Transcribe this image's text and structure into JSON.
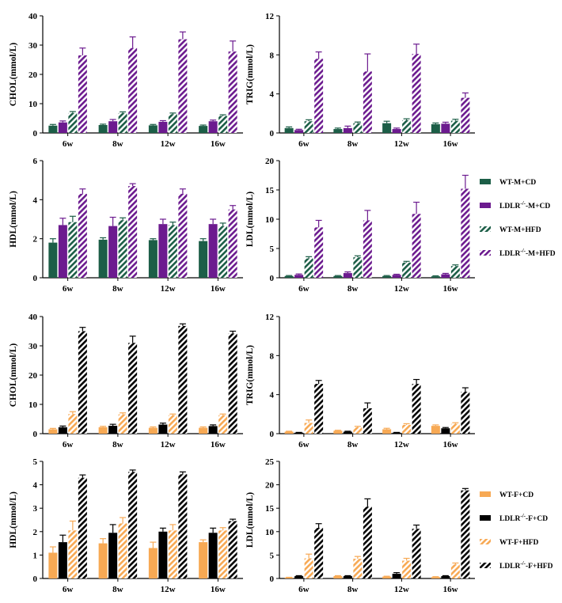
{
  "colors": {
    "wt_m": "#1c5e47",
    "ldlr_m": "#6c1b8f",
    "wt_f": "#f7a954",
    "ldlr_f": "#000000"
  },
  "legend_male": [
    {
      "label": "WT-M+CD",
      "sup": "",
      "rest": "",
      "pattern": "solid",
      "color_key": "wt_m"
    },
    {
      "label": "LDLR",
      "sup": "-/-",
      "rest": "-M+CD",
      "pattern": "solid",
      "color_key": "ldlr_m"
    },
    {
      "label": "WT-M+HFD",
      "sup": "",
      "rest": "",
      "pattern": "hatch",
      "color_key": "wt_m"
    },
    {
      "label": "LDLR",
      "sup": "-/-",
      "rest": "-M+HFD",
      "pattern": "hatch",
      "color_key": "ldlr_m"
    }
  ],
  "legend_female": [
    {
      "label": "WT-F+CD",
      "sup": "",
      "rest": "",
      "pattern": "solid",
      "color_key": "wt_f"
    },
    {
      "label": "LDLR",
      "sup": "-/-",
      "rest": "-F+CD",
      "pattern": "solid",
      "color_key": "ldlr_f"
    },
    {
      "label": "WT-F+HFD",
      "sup": "",
      "rest": "",
      "pattern": "hatch",
      "color_key": "wt_f"
    },
    {
      "label": "LDLR",
      "sup": "-/-",
      "rest": "-F+HFD",
      "pattern": "hatch",
      "color_key": "ldlr_f"
    }
  ],
  "chart_data": [
    {
      "type": "bar",
      "id": "male-chol",
      "group": "male",
      "ylabel": "CHOL(mmol/L)",
      "ylim": [
        0,
        40
      ],
      "yticks": [
        0,
        10,
        20,
        30,
        40
      ],
      "categories": [
        "6w",
        "8w",
        "12w",
        "16w"
      ],
      "series": [
        {
          "color_key": "wt_m",
          "pattern": "solid",
          "values": [
            2.5,
            2.7,
            2.6,
            2.4
          ],
          "err": [
            0.4,
            0.3,
            0.3,
            0.3
          ]
        },
        {
          "color_key": "ldlr_m",
          "pattern": "solid",
          "values": [
            3.6,
            4.0,
            3.8,
            4.0
          ],
          "err": [
            0.5,
            0.6,
            0.4,
            0.4
          ]
        },
        {
          "color_key": "wt_m",
          "pattern": "hatch",
          "values": [
            6.8,
            6.8,
            6.4,
            5.8
          ],
          "err": [
            0.5,
            0.4,
            0.4,
            0.4
          ]
        },
        {
          "color_key": "ldlr_m",
          "pattern": "hatch",
          "values": [
            26.5,
            29.0,
            32.0,
            27.8
          ],
          "err": [
            2.5,
            3.8,
            2.5,
            3.6
          ]
        }
      ]
    },
    {
      "type": "bar",
      "id": "male-trig",
      "group": "male",
      "ylabel": "TRIG(mmol/L)",
      "ylim": [
        0,
        12
      ],
      "yticks": [
        0,
        4,
        8,
        12
      ],
      "categories": [
        "6w",
        "8w",
        "12w",
        "16w"
      ],
      "series": [
        {
          "color_key": "wt_m",
          "pattern": "solid",
          "values": [
            0.5,
            0.4,
            1.0,
            0.9
          ],
          "err": [
            0.12,
            0.1,
            0.2,
            0.12
          ]
        },
        {
          "color_key": "ldlr_m",
          "pattern": "solid",
          "values": [
            0.3,
            0.5,
            0.4,
            0.95
          ],
          "err": [
            0.08,
            0.2,
            0.1,
            0.15
          ]
        },
        {
          "color_key": "wt_m",
          "pattern": "hatch",
          "values": [
            1.2,
            1.0,
            1.3,
            1.25
          ],
          "err": [
            0.15,
            0.12,
            0.15,
            0.15
          ]
        },
        {
          "color_key": "ldlr_m",
          "pattern": "hatch",
          "values": [
            7.6,
            6.3,
            8.1,
            3.6
          ],
          "err": [
            0.7,
            1.8,
            1.0,
            0.5
          ]
        }
      ]
    },
    {
      "type": "bar",
      "id": "male-hdl",
      "group": "male",
      "ylabel": "HDL(mmol/L)",
      "ylim": [
        0,
        6
      ],
      "yticks": [
        0,
        2,
        4,
        6
      ],
      "categories": [
        "6w",
        "8w",
        "12w",
        "16w"
      ],
      "series": [
        {
          "color_key": "wt_m",
          "pattern": "solid",
          "values": [
            1.8,
            1.95,
            1.93,
            1.88
          ],
          "err": [
            0.2,
            0.1,
            0.07,
            0.12
          ]
        },
        {
          "color_key": "ldlr_m",
          "pattern": "solid",
          "values": [
            2.7,
            2.65,
            2.75,
            2.75
          ],
          "err": [
            0.35,
            0.45,
            0.25,
            0.25
          ]
        },
        {
          "color_key": "wt_m",
          "pattern": "hatch",
          "values": [
            2.85,
            2.95,
            2.7,
            2.65
          ],
          "err": [
            0.3,
            0.12,
            0.15,
            0.15
          ]
        },
        {
          "color_key": "ldlr_m",
          "pattern": "hatch",
          "values": [
            4.3,
            4.7,
            4.3,
            3.5
          ],
          "err": [
            0.25,
            0.12,
            0.25,
            0.2
          ]
        }
      ]
    },
    {
      "type": "bar",
      "id": "male-ldl",
      "group": "male",
      "ylabel": "LDL(mmol/L)",
      "ylim": [
        0,
        20
      ],
      "yticks": [
        0,
        5,
        10,
        15,
        20
      ],
      "categories": [
        "6w",
        "8w",
        "12w",
        "16w"
      ],
      "series": [
        {
          "color_key": "wt_m",
          "pattern": "solid",
          "values": [
            0.3,
            0.3,
            0.3,
            0.25
          ],
          "err": [
            0.08,
            0.08,
            0.08,
            0.08
          ]
        },
        {
          "color_key": "ldlr_m",
          "pattern": "solid",
          "values": [
            0.5,
            0.8,
            0.5,
            0.6
          ],
          "err": [
            0.15,
            0.2,
            0.1,
            0.15
          ]
        },
        {
          "color_key": "wt_m",
          "pattern": "hatch",
          "values": [
            3.3,
            3.5,
            2.6,
            2.0
          ],
          "err": [
            0.3,
            0.25,
            0.2,
            0.2
          ]
        },
        {
          "color_key": "ldlr_m",
          "pattern": "hatch",
          "values": [
            8.6,
            9.8,
            10.9,
            15.2
          ],
          "err": [
            1.2,
            1.7,
            2.0,
            2.3
          ]
        }
      ]
    },
    {
      "type": "bar",
      "id": "female-chol",
      "group": "female",
      "ylabel": "CHOL(mmol/L)",
      "ylim": [
        0,
        40
      ],
      "yticks": [
        0,
        10,
        20,
        30,
        40
      ],
      "categories": [
        "6w",
        "8w",
        "12w",
        "16w"
      ],
      "series": [
        {
          "color_key": "wt_f",
          "pattern": "solid",
          "values": [
            1.5,
            2.2,
            2.0,
            2.0
          ],
          "err": [
            0.3,
            0.3,
            0.3,
            0.3
          ]
        },
        {
          "color_key": "ldlr_f",
          "pattern": "solid",
          "values": [
            2.2,
            2.7,
            3.1,
            2.6
          ],
          "err": [
            0.4,
            0.5,
            0.5,
            0.4
          ]
        },
        {
          "color_key": "wt_f",
          "pattern": "hatch",
          "values": [
            6.7,
            6.6,
            6.3,
            6.3
          ],
          "err": [
            0.8,
            0.5,
            0.4,
            0.4
          ]
        },
        {
          "color_key": "ldlr_f",
          "pattern": "hatch",
          "values": [
            35.0,
            31.0,
            36.8,
            34.2
          ],
          "err": [
            1.3,
            2.3,
            0.7,
            0.8
          ]
        }
      ]
    },
    {
      "type": "bar",
      "id": "female-trig",
      "group": "female",
      "ylabel": "TRIG(mmol/L)",
      "ylim": [
        0,
        12
      ],
      "yticks": [
        0,
        4,
        8,
        12
      ],
      "categories": [
        "6w",
        "8w",
        "12w",
        "16w"
      ],
      "series": [
        {
          "color_key": "wt_f",
          "pattern": "solid",
          "values": [
            0.2,
            0.3,
            0.45,
            0.8
          ],
          "err": [
            0.05,
            0.05,
            0.1,
            0.1
          ]
        },
        {
          "color_key": "ldlr_f",
          "pattern": "solid",
          "values": [
            0.1,
            0.2,
            0.1,
            0.55
          ],
          "err": [
            0.03,
            0.05,
            0.03,
            0.08
          ]
        },
        {
          "color_key": "wt_f",
          "pattern": "hatch",
          "values": [
            1.1,
            0.65,
            0.9,
            1.0
          ],
          "err": [
            0.3,
            0.1,
            0.12,
            0.12
          ]
        },
        {
          "color_key": "ldlr_f",
          "pattern": "hatch",
          "values": [
            5.1,
            2.6,
            5.1,
            4.3
          ],
          "err": [
            0.35,
            0.55,
            0.45,
            0.4
          ]
        }
      ]
    },
    {
      "type": "bar",
      "id": "female-hdl",
      "group": "female",
      "ylabel": "HDL(mmol/L)",
      "ylim": [
        0,
        5
      ],
      "yticks": [
        0,
        1,
        2,
        3,
        4,
        5
      ],
      "categories": [
        "6w",
        "8w",
        "12w",
        "16w"
      ],
      "series": [
        {
          "color_key": "wt_f",
          "pattern": "solid",
          "values": [
            1.1,
            1.5,
            1.3,
            1.55
          ],
          "err": [
            0.25,
            0.2,
            0.25,
            0.1
          ]
        },
        {
          "color_key": "ldlr_f",
          "pattern": "solid",
          "values": [
            1.55,
            1.95,
            2.0,
            1.95
          ],
          "err": [
            0.3,
            0.35,
            0.15,
            0.2
          ]
        },
        {
          "color_key": "wt_f",
          "pattern": "hatch",
          "values": [
            2.05,
            2.35,
            2.05,
            2.05
          ],
          "err": [
            0.4,
            0.25,
            0.25,
            0.12
          ]
        },
        {
          "color_key": "ldlr_f",
          "pattern": "hatch",
          "values": [
            4.3,
            4.55,
            4.45,
            2.45
          ],
          "err": [
            0.12,
            0.08,
            0.1,
            0.08
          ]
        }
      ]
    },
    {
      "type": "bar",
      "id": "female-ldl",
      "group": "female",
      "ylabel": "LDL(mmol/L)",
      "ylim": [
        0,
        25
      ],
      "yticks": [
        0,
        5,
        10,
        15,
        20,
        25
      ],
      "categories": [
        "6w",
        "8w",
        "12w",
        "16w"
      ],
      "series": [
        {
          "color_key": "wt_f",
          "pattern": "solid",
          "values": [
            0.2,
            0.5,
            0.4,
            0.3
          ],
          "err": [
            0.05,
            0.1,
            0.08,
            0.08
          ]
        },
        {
          "color_key": "ldlr_f",
          "pattern": "solid",
          "values": [
            0.5,
            0.5,
            1.0,
            0.5
          ],
          "err": [
            0.1,
            0.1,
            0.25,
            0.1
          ]
        },
        {
          "color_key": "wt_f",
          "pattern": "hatch",
          "values": [
            4.3,
            4.2,
            3.8,
            3.0
          ],
          "err": [
            0.9,
            0.5,
            0.5,
            0.3
          ]
        },
        {
          "color_key": "ldlr_f",
          "pattern": "hatch",
          "values": [
            10.8,
            15.3,
            10.6,
            18.8
          ],
          "err": [
            0.9,
            1.7,
            0.8,
            0.4
          ]
        }
      ]
    }
  ]
}
